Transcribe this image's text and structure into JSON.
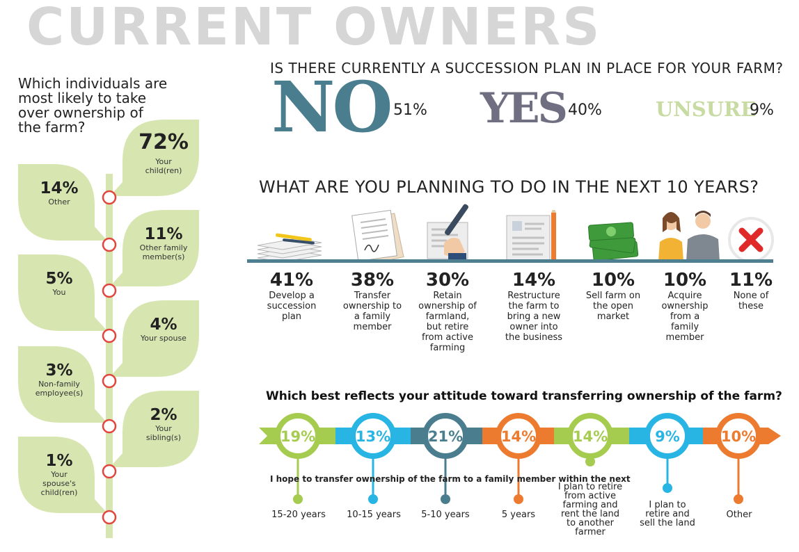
{
  "title": "CURRENT OWNERS",
  "successors": {
    "question": "Which individuals are most likely to take over ownership of the farm?",
    "items": [
      {
        "pct": "72%",
        "label": "Your child(ren)",
        "value": 72
      },
      {
        "pct": "14%",
        "label": "Other",
        "value": 14
      },
      {
        "pct": "11%",
        "label": "Other family member(s)",
        "value": 11
      },
      {
        "pct": "5%",
        "label": "You",
        "value": 5
      },
      {
        "pct": "4%",
        "label": "Your spouse",
        "value": 4
      },
      {
        "pct": "3%",
        "label": "Non-family employee(s)",
        "value": 3
      },
      {
        "pct": "2%",
        "label": "Your sibling(s)",
        "value": 2
      },
      {
        "pct": "1%",
        "label": "Your spouse's child(ren)",
        "value": 1
      }
    ]
  },
  "succession": {
    "question": "IS THERE CURRENTLY A SUCCESSION PLAN IN PLACE FOR YOUR FARM?",
    "no": {
      "word": "NO",
      "pct": "51%"
    },
    "yes": {
      "word": "YES",
      "pct": "40%"
    },
    "unsure": {
      "word": "UNSURE",
      "pct": "9%"
    }
  },
  "plans": {
    "question": "WHAT ARE YOU PLANNING TO DO IN THE NEXT 10 YEARS?",
    "items": [
      {
        "pct": "41%",
        "label": "Develop a succession plan",
        "icon": "papers-pen-icon"
      },
      {
        "pct": "38%",
        "label": "Transfer ownership to a family member",
        "icon": "signed-document-icon"
      },
      {
        "pct": "30%",
        "label": "Retain ownership of farmland, but retire from active farming",
        "icon": "hand-signing-icon"
      },
      {
        "pct": "14%",
        "label": "Restructure the farm to bring a new owner into the business",
        "icon": "resume-pencil-icon"
      },
      {
        "pct": "10%",
        "label": "Sell farm on the open market",
        "icon": "money-stack-icon"
      },
      {
        "pct": "10%",
        "label": "Acquire ownership from a family member",
        "icon": "people-icon"
      },
      {
        "pct": "11%",
        "label": "None of these",
        "icon": "x-mark-icon"
      }
    ]
  },
  "attitude": {
    "question": "Which best reflects your attitude toward transferring ownership of the farm?",
    "sentence": "I hope to transfer ownership of the farm to a family member within the next",
    "items": [
      {
        "pct": "19%",
        "value": 19,
        "label": "15-20 years",
        "color": "#a6cc4f"
      },
      {
        "pct": "13%",
        "value": 13,
        "label": "10-15 years",
        "color": "#29b5e3"
      },
      {
        "pct": "21%",
        "value": 21,
        "label": "5-10 years",
        "color": "#4a7e8f"
      },
      {
        "pct": "14%",
        "value": 14,
        "label": "5 years",
        "color": "#ec7a2f"
      },
      {
        "pct": "14%",
        "value": 14,
        "label": "I plan to retire from active farming and rent the land to another farmer",
        "color": "#a6cc4f"
      },
      {
        "pct": "9%",
        "value": 9,
        "label": "I plan to retire and sell the land",
        "color": "#29b5e3"
      },
      {
        "pct": "10%",
        "value": 10,
        "label": "Other",
        "color": "#ec7a2f"
      }
    ]
  },
  "chart_data": [
    {
      "type": "bar",
      "title": "Which individuals are most likely to take over ownership of the farm?",
      "categories": [
        "Your child(ren)",
        "Other",
        "Other family member(s)",
        "You",
        "Your spouse",
        "Non-family employee(s)",
        "Your sibling(s)",
        "Your spouse's child(ren)"
      ],
      "values": [
        72,
        14,
        11,
        5,
        4,
        3,
        2,
        1
      ]
    },
    {
      "type": "bar",
      "title": "IS THERE CURRENTLY A SUCCESSION PLAN IN PLACE FOR YOUR FARM?",
      "categories": [
        "NO",
        "YES",
        "UNSURE"
      ],
      "values": [
        51,
        40,
        9
      ]
    },
    {
      "type": "bar",
      "title": "WHAT ARE YOU PLANNING TO DO IN THE NEXT 10 YEARS?",
      "categories": [
        "Develop a succession plan",
        "Transfer ownership to a family member",
        "Retain ownership of farmland, but retire from active farming",
        "Restructure the farm to bring a new owner into the business",
        "Sell farm on the open market",
        "Acquire ownership from a family member",
        "None of these"
      ],
      "values": [
        41,
        38,
        30,
        14,
        10,
        10,
        11
      ]
    },
    {
      "type": "bar",
      "title": "Which best reflects your attitude toward transferring ownership of the farm?",
      "categories": [
        "15-20 years",
        "10-15 years",
        "5-10 years",
        "5 years",
        "I plan to retire from active farming and rent the land to another farmer",
        "I plan to retire and sell the land",
        "Other"
      ],
      "values": [
        19,
        13,
        21,
        14,
        14,
        9,
        10
      ]
    }
  ],
  "colors": {
    "leaf": "#d7e6b1",
    "stem": "#d7e6b1",
    "ring": "#e2453c",
    "no": "#4a7e8f",
    "yes": "#6f6f81",
    "unsure": "#c7dba2"
  }
}
